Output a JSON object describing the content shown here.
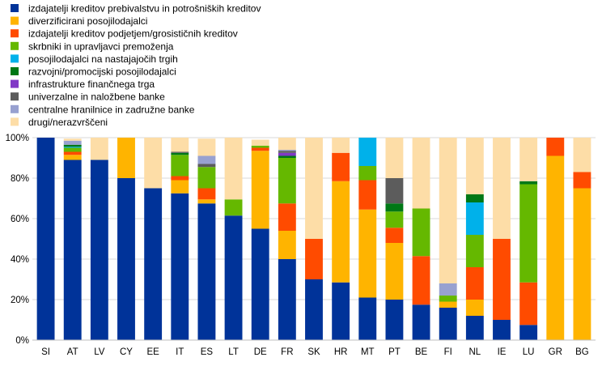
{
  "chart_data": {
    "type": "bar",
    "stacked": true,
    "categories": [
      "SI",
      "AT",
      "LV",
      "CY",
      "EE",
      "IT",
      "ES",
      "LT",
      "DE",
      "FR",
      "SK",
      "HR",
      "MT",
      "PT",
      "BE",
      "FI",
      "NL",
      "IE",
      "LU",
      "GR",
      "BG"
    ],
    "yticks": [
      "0%",
      "20%",
      "40%",
      "60%",
      "80%",
      "100%"
    ],
    "ylim": [
      0,
      100
    ],
    "grid": "horizontal",
    "legend_position": "top-left",
    "series": [
      {
        "name": "izdajatelji kreditov prebivalstvu in potrošniških kreditov",
        "color": "#003399",
        "values": [
          100,
          89,
          89,
          80,
          75,
          72.5,
          67.5,
          61.5,
          55,
          40,
          30,
          28.5,
          21,
          20,
          17.5,
          16,
          12,
          10,
          7.5,
          0,
          0
        ]
      },
      {
        "name": "diverzificirani posojilodajalci",
        "color": "#FFB400",
        "values": [
          0,
          2.5,
          0,
          20,
          0,
          6.5,
          2,
          0,
          38.5,
          14,
          0,
          50,
          43.5,
          28,
          0,
          3,
          8,
          0,
          0,
          91,
          75
        ]
      },
      {
        "name": "izdajatelji kreditov podjetjem/grosističnih kreditov",
        "color": "#FF4B00",
        "values": [
          0,
          1.5,
          0,
          0,
          0,
          2,
          5.5,
          0,
          1.5,
          13.5,
          20,
          14,
          14.5,
          7.5,
          24,
          0,
          16,
          40,
          21,
          9,
          8
        ]
      },
      {
        "name": "skrbniki in upravljavci premoženja",
        "color": "#65B800",
        "values": [
          0,
          2,
          0,
          0,
          0,
          10.5,
          10.5,
          8,
          1,
          22.5,
          0,
          0,
          7,
          8,
          23.5,
          3,
          16,
          0,
          48.5,
          0,
          0
        ]
      },
      {
        "name": "posojilodajalci na nastajajočih trgih",
        "color": "#00B1EA",
        "values": [
          0,
          0.5,
          0,
          0,
          0,
          0,
          0,
          0,
          0,
          0,
          0,
          0,
          14,
          0,
          0,
          0,
          16,
          0,
          0,
          0,
          0
        ]
      },
      {
        "name": "razvojni/promocijski posojilodajalci",
        "color": "#007816",
        "values": [
          0,
          1,
          0,
          0,
          0,
          1,
          0,
          0,
          0,
          1,
          0,
          0,
          0,
          4,
          0,
          0,
          4,
          0,
          1.5,
          0,
          0
        ]
      },
      {
        "name": "infrastrukture finančnega trga",
        "color": "#8139C6",
        "values": [
          0,
          0,
          0,
          0,
          0,
          0,
          0,
          0,
          0,
          1.5,
          0,
          0,
          0,
          0,
          0,
          0,
          0,
          0,
          0,
          0,
          0
        ]
      },
      {
        "name": "univerzalne in naložbene banke",
        "color": "#5C5C5C",
        "values": [
          0,
          0,
          0,
          0,
          0,
          0.5,
          1.5,
          0,
          0,
          1,
          0,
          0,
          0,
          12.5,
          0,
          0,
          0,
          0,
          0,
          0,
          0
        ]
      },
      {
        "name": "centralne hranilnice in zadružne banke",
        "color": "#98A1D0",
        "values": [
          0,
          2,
          0,
          0,
          0,
          0,
          4,
          0,
          0,
          0.5,
          0,
          0,
          0,
          0,
          0,
          6,
          0,
          0,
          0,
          0,
          0
        ]
      },
      {
        "name": "drugi/nerazvrščeni",
        "color": "#FDDDA7",
        "values": [
          0,
          1,
          11,
          0,
          25,
          7,
          8.5,
          30.5,
          3,
          6,
          50,
          7.5,
          0,
          20,
          35,
          72,
          28,
          50,
          21.5,
          0,
          17
        ]
      }
    ]
  }
}
